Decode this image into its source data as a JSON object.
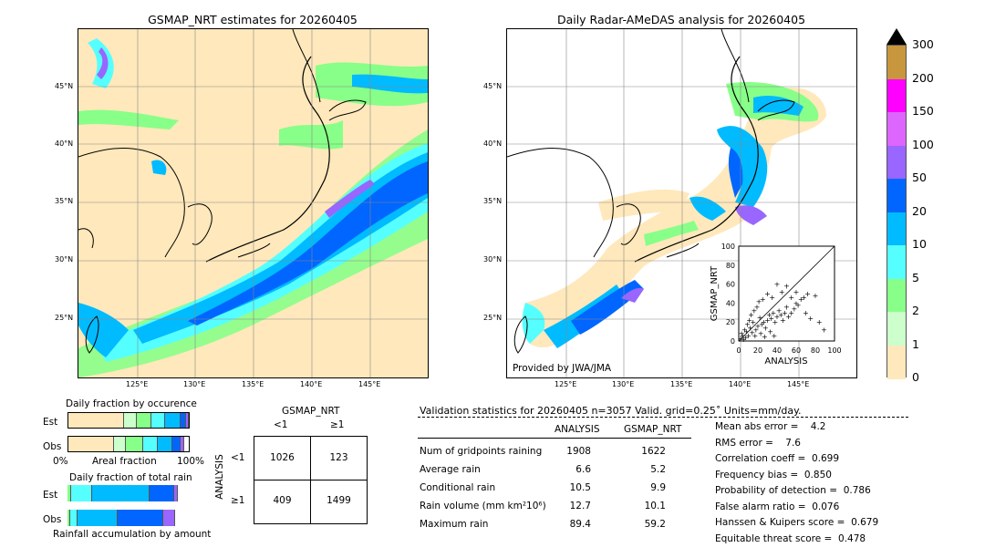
{
  "left_map": {
    "title": "GSMAP_NRT estimates for 20260405",
    "lat_labels": [
      "45°N",
      "40°N",
      "35°N",
      "30°N",
      "25°N"
    ],
    "lon_labels": [
      "125°E",
      "130°E",
      "135°E",
      "140°E",
      "145°E"
    ]
  },
  "right_map": {
    "title": "Daily Radar-AMeDAS analysis for 20260405",
    "lat_labels": [
      "45°N",
      "40°N",
      "35°N",
      "30°N",
      "25°N"
    ],
    "lon_labels": [
      "125°E",
      "130°E",
      "135°E",
      "140°E",
      "145°E"
    ],
    "credit": "Provided by JWA/JMA"
  },
  "colorbar": {
    "ticks": [
      "300",
      "200",
      "150",
      "100",
      "50",
      "20",
      "10",
      "5",
      "2",
      "1",
      "0"
    ],
    "colors": [
      "#c8963c",
      "#ff00ff",
      "#dd66ff",
      "#9966ff",
      "#0066ff",
      "#00bbff",
      "#55ffff",
      "#88ff88",
      "#ccffcc",
      "#ffe8bb"
    ]
  },
  "chart_data": [
    {
      "type": "scatter",
      "title": "",
      "xlabel": "ANALYSIS",
      "ylabel": "GSMAP_NRT",
      "xlim": [
        0,
        100
      ],
      "ylim": [
        0,
        100
      ],
      "xticks": [
        "0",
        "20",
        "40",
        "60",
        "80",
        "100"
      ],
      "yticks": [
        "0",
        "20",
        "40",
        "60",
        "80",
        "100"
      ],
      "note": "dense cluster near origin; diagonal reference line",
      "points": [
        [
          2,
          3
        ],
        [
          4,
          6
        ],
        [
          5,
          2
        ],
        [
          8,
          10
        ],
        [
          10,
          6
        ],
        [
          12,
          14
        ],
        [
          14,
          9
        ],
        [
          15,
          20
        ],
        [
          18,
          12
        ],
        [
          20,
          16
        ],
        [
          22,
          25
        ],
        [
          24,
          18
        ],
        [
          26,
          20
        ],
        [
          28,
          14
        ],
        [
          30,
          22
        ],
        [
          32,
          28
        ],
        [
          34,
          24
        ],
        [
          36,
          30
        ],
        [
          38,
          20
        ],
        [
          40,
          26
        ],
        [
          42,
          32
        ],
        [
          44,
          28
        ],
        [
          46,
          22
        ],
        [
          48,
          30
        ],
        [
          50,
          36
        ],
        [
          52,
          26
        ],
        [
          55,
          30
        ],
        [
          58,
          34
        ],
        [
          60,
          40
        ],
        [
          62,
          38
        ],
        [
          65,
          44
        ],
        [
          68,
          46
        ],
        [
          70,
          30
        ],
        [
          72,
          50
        ],
        [
          75,
          24
        ],
        [
          80,
          48
        ],
        [
          84,
          20
        ],
        [
          89,
          12
        ],
        [
          6,
          12
        ],
        [
          9,
          18
        ],
        [
          11,
          22
        ],
        [
          13,
          28
        ],
        [
          16,
          32
        ],
        [
          19,
          36
        ],
        [
          21,
          42
        ],
        [
          25,
          44
        ],
        [
          30,
          50
        ],
        [
          35,
          46
        ],
        [
          40,
          60
        ],
        [
          45,
          52
        ],
        [
          50,
          58
        ],
        [
          55,
          46
        ],
        [
          60,
          52
        ],
        [
          3,
          8
        ],
        [
          7,
          4
        ],
        [
          17,
          6
        ],
        [
          23,
          8
        ],
        [
          27,
          5
        ],
        [
          33,
          10
        ],
        [
          37,
          6
        ]
      ]
    },
    {
      "type": "bar",
      "title": "Daily fraction by occurence",
      "categories": [
        "Est",
        "Obs"
      ],
      "xlabel": "Areal fraction",
      "xticks": [
        "0%",
        "100%"
      ],
      "series": [
        {
          "color": "#ffe8bb",
          "values": [
            0.46,
            0.38
          ]
        },
        {
          "color": "#ccffcc",
          "values": [
            0.11,
            0.1
          ]
        },
        {
          "color": "#88ff88",
          "values": [
            0.12,
            0.14
          ]
        },
        {
          "color": "#55ffff",
          "values": [
            0.11,
            0.12
          ]
        },
        {
          "color": "#00bbff",
          "values": [
            0.13,
            0.12
          ]
        },
        {
          "color": "#0066ff",
          "values": [
            0.05,
            0.07
          ]
        },
        {
          "color": "#9966ff",
          "values": [
            0.02,
            0.03
          ]
        }
      ]
    },
    {
      "type": "bar",
      "title": "Daily fraction of total rain",
      "categories": [
        "Est",
        "Obs"
      ],
      "xlabel": "Rainfall accumulation by amount",
      "series": [
        {
          "color": "#88ff88",
          "values": [
            0.03,
            0.02
          ]
        },
        {
          "color": "#55ffff",
          "values": [
            0.17,
            0.06
          ]
        },
        {
          "color": "#00bbff",
          "values": [
            0.47,
            0.33
          ]
        },
        {
          "color": "#0066ff",
          "values": [
            0.2,
            0.37
          ]
        },
        {
          "color": "#9966ff",
          "values": [
            0.03,
            0.1
          ]
        }
      ]
    },
    {
      "type": "table",
      "title": "GSMAP_NRT",
      "col_headers": [
        "<1",
        "≥1"
      ],
      "row_axis": "ANALYSIS",
      "row_headers": [
        "<1",
        "≥1"
      ],
      "values": [
        [
          "1026",
          "123"
        ],
        [
          "409",
          "1499"
        ]
      ]
    }
  ],
  "stats": {
    "header": "Validation statistics for 20260405  n=3057 Valid. grid=0.25˚ Units=mm/day.",
    "col_analysis": "ANALYSIS",
    "col_gsmap": "GSMAP_NRT",
    "rows": [
      {
        "label": "Num of gridpoints raining",
        "a": "1908",
        "g": "1622"
      },
      {
        "label": "Average rain",
        "a": "6.6",
        "g": "5.2"
      },
      {
        "label": "Conditional rain",
        "a": "10.5",
        "g": "9.9"
      },
      {
        "label": "Rain volume (mm km²10⁶)",
        "a": "12.7",
        "g": "10.1"
      },
      {
        "label": "Maximum rain",
        "a": "89.4",
        "g": "59.2"
      }
    ],
    "scores": [
      "Mean abs error =    4.2",
      "RMS error =    7.6",
      "Correlation coeff =  0.699",
      "Frequency bias =  0.850",
      "Probability of detection =  0.786",
      "False alarm ratio =  0.076",
      "Hanssen & Kuipers score =  0.679",
      "Equitable threat score =  0.478"
    ]
  }
}
